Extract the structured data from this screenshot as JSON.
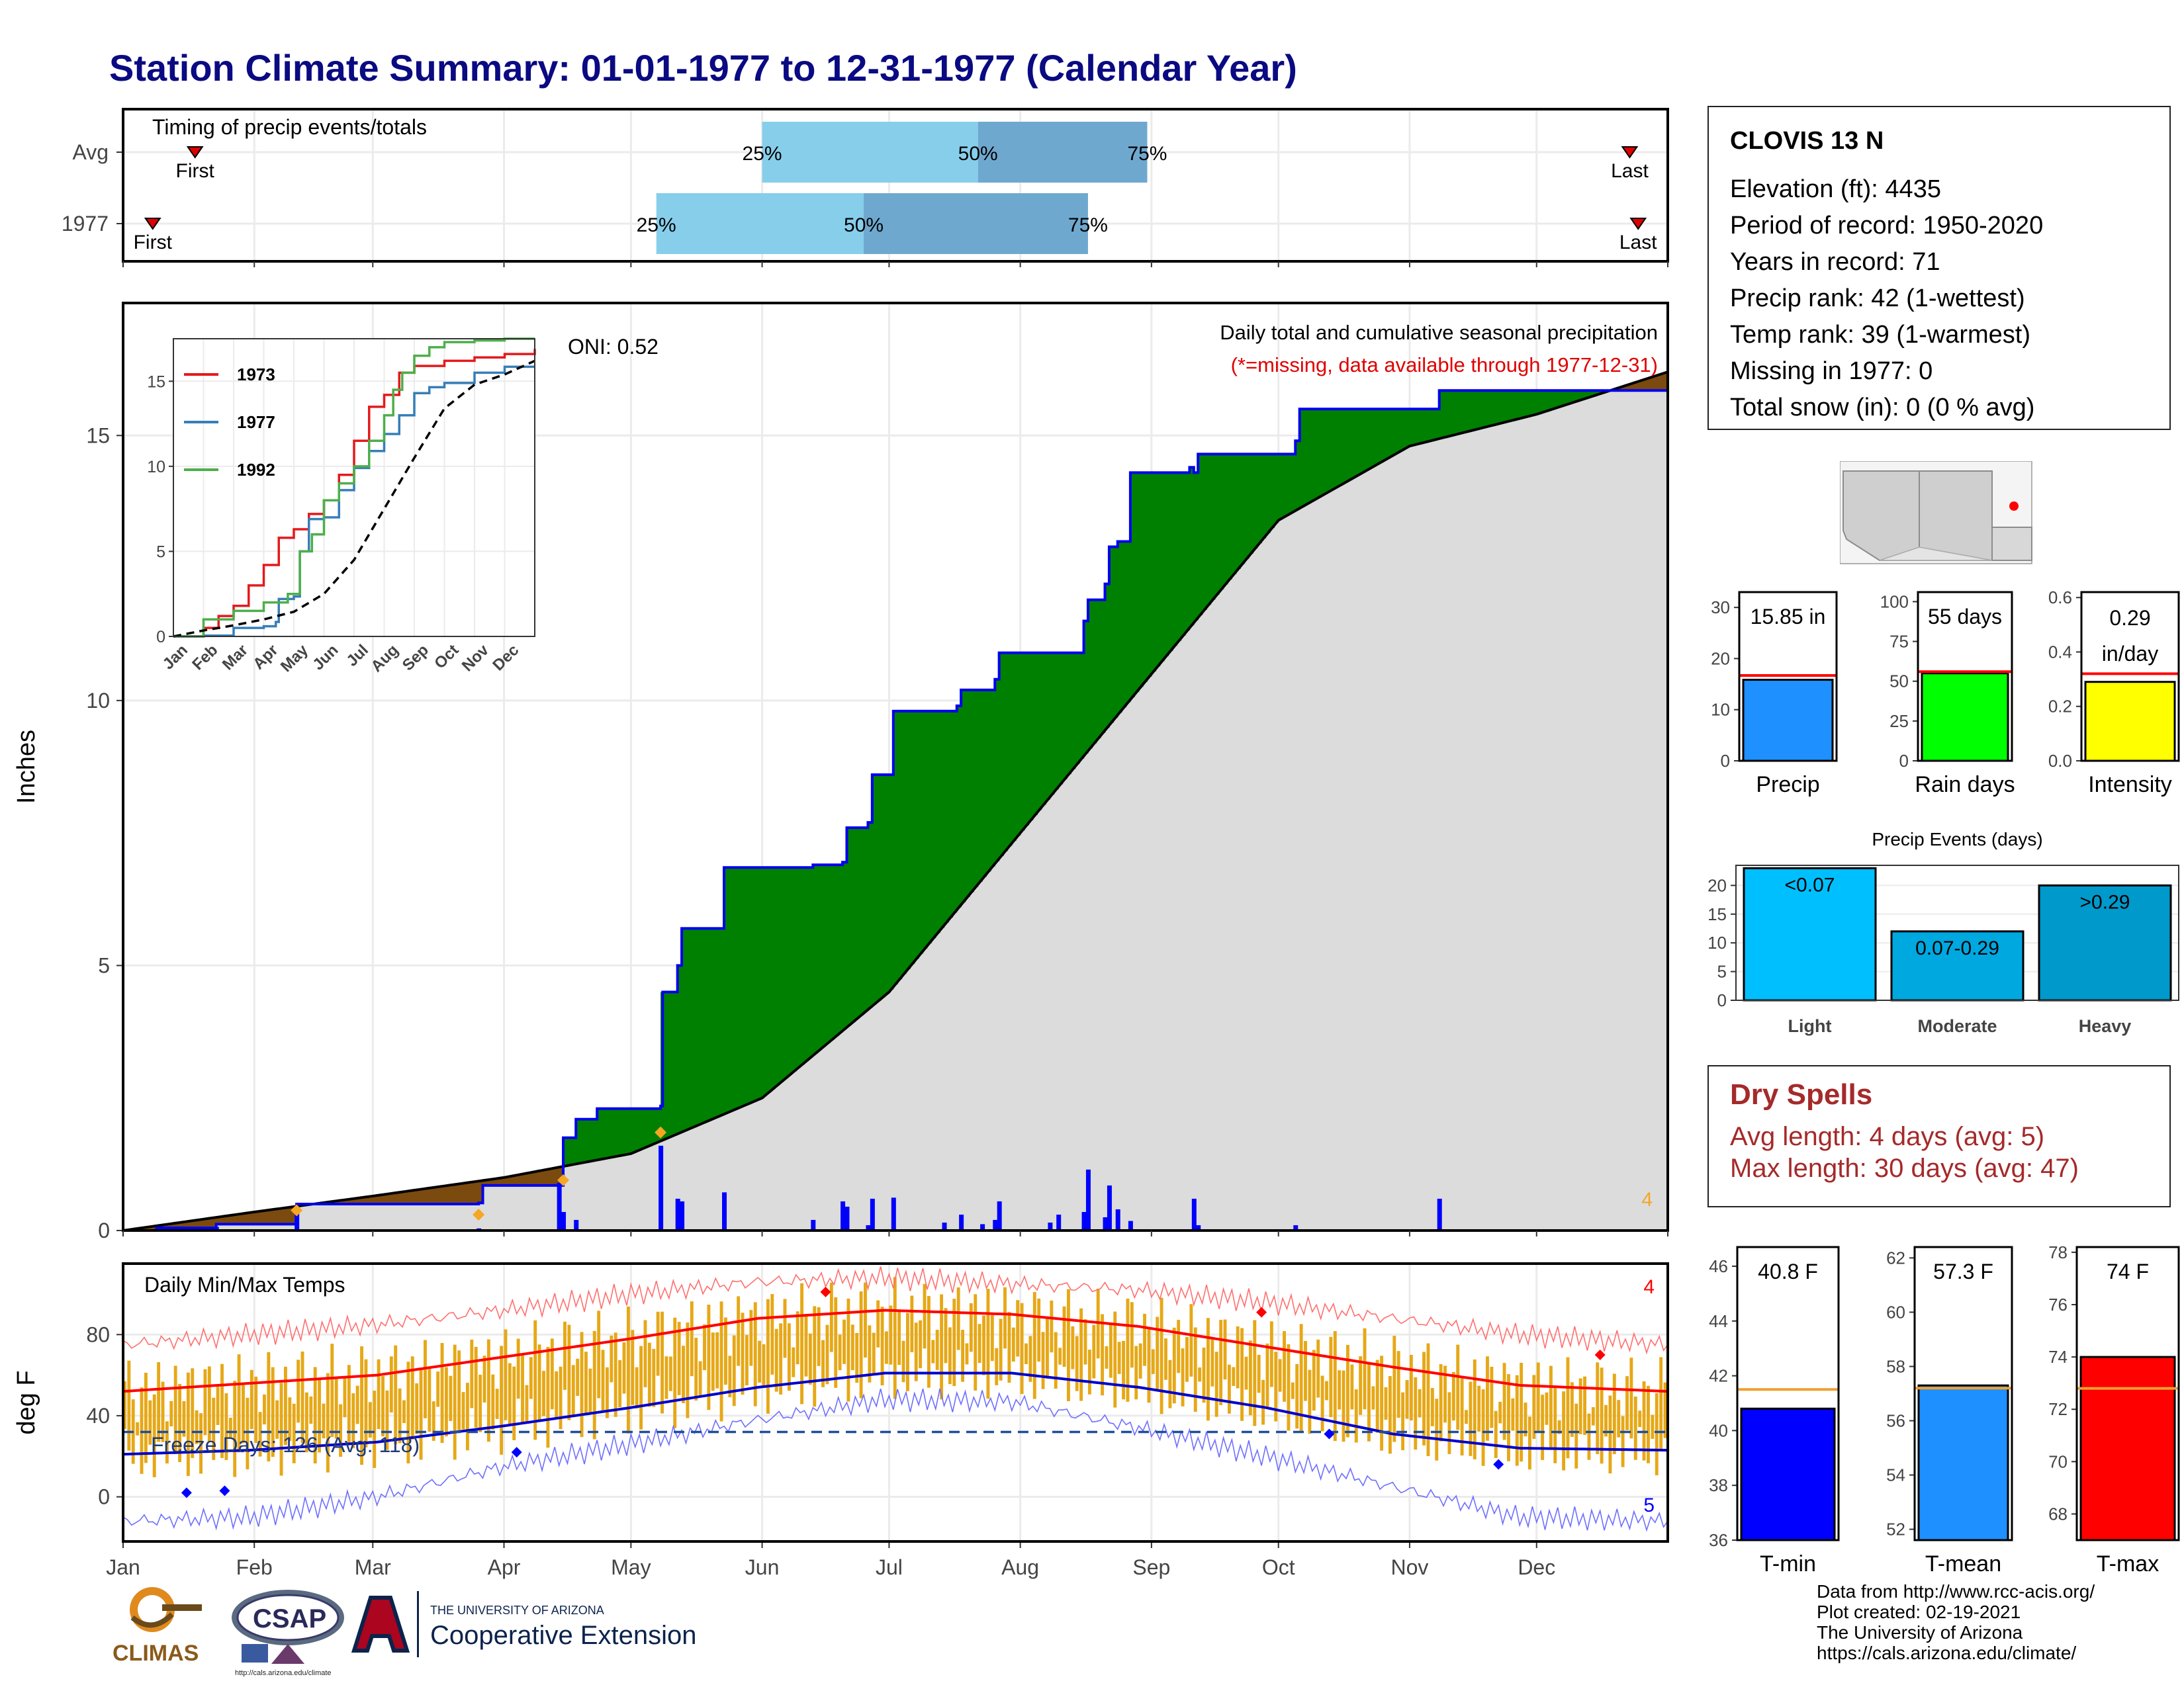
{
  "page": {
    "title": "Station Climate Summary: 01-01-1977 to 12-31-1977 (Calendar Year)"
  },
  "station": {
    "name": "CLOVIS 13 N",
    "lines": [
      "Elevation (ft): 4435",
      "Period of record: 1950-2020",
      "Years in record: 71",
      "Precip rank: 42 (1-wettest)",
      "Temp rank: 39 (1-warmest)",
      "Missing in 1977: 0",
      "Total snow (in): 0 (0 % avg)"
    ]
  },
  "dry_spells": {
    "title": "Dry Spells",
    "avg": "Avg length: 4 days (avg: 5)",
    "max": "Max length: 30 days (avg: 47)"
  },
  "credits": [
    "Data from http://www.rcc-acis.org/",
    "Plot created: 02-19-2021",
    "The University of Arizona",
    "https://cals.arizona.edu/climate/"
  ],
  "logos": {
    "climas": "CLIMAS",
    "csap": "CSAP",
    "csap_url": "http://cals.arizona.edu/climate",
    "ua_small": "THE UNIVERSITY OF ARIZONA",
    "ua_big": "Cooperative Extension"
  },
  "colors": {
    "title": "#0a0a82",
    "surplus": "#008000",
    "deficit": "#7b4a0f",
    "normal_fill": "#dcdcdc",
    "precip_bar": "#0000ff",
    "temp_bar": "#e6a817",
    "tmax_line": "#ff0000",
    "tmin_line": "#0000cc",
    "q1": "#87ceeb",
    "q2": "#6fa8cf"
  },
  "chart_data": [
    {
      "id": "timing",
      "type": "bar",
      "title": "Timing of precip events/totals",
      "rows": [
        {
          "label": "Avg",
          "first": "Jan 18",
          "q25": "Jun 1",
          "q50": "Jul 22",
          "q75": "Aug 31",
          "last": "Dec 23"
        },
        {
          "label": "1977",
          "first": "Jan 8",
          "q25": "May 7",
          "q50": "Jun 25",
          "q75": "Aug 17",
          "last": "Dec 25"
        }
      ],
      "marker_labels": {
        "first": "First",
        "last": "Last",
        "q25": "25%",
        "q50": "50%",
        "q75": "75%"
      }
    },
    {
      "id": "precip",
      "type": "area",
      "title": "Daily total and cumulative seasonal precipitation",
      "subtitle": "(*=missing, data available through 1977-12-31)",
      "oni": "ONI: 0.52",
      "ylabel": "Inches",
      "ylim": [
        0,
        17.5
      ],
      "yticks": [
        0,
        5,
        10,
        15
      ],
      "xlabels": [
        "Jan",
        "Feb",
        "Mar",
        "Apr",
        "May",
        "Jun",
        "Jul",
        "Aug",
        "Sep",
        "Oct",
        "Nov",
        "Dec"
      ],
      "corner_count": "4",
      "normal_cumulative": {
        "day": [
          0,
          31,
          59,
          90,
          120,
          151,
          181,
          212,
          243,
          273,
          304,
          334,
          365
        ],
        "value": [
          0,
          0.35,
          0.65,
          1.0,
          1.45,
          2.5,
          4.5,
          7.5,
          10.5,
          13.4,
          14.8,
          15.4,
          16.2
        ]
      },
      "cumulative_1977": {
        "day": [
          0,
          8,
          22,
          41,
          84,
          85,
          103,
          104,
          107,
          112,
          127,
          127.5,
          131,
          132,
          142,
          163,
          170,
          171,
          176,
          177,
          182,
          197,
          198,
          206,
          207,
          227,
          228,
          232,
          233,
          235,
          238,
          252,
          253,
          254,
          277,
          278,
          306,
          311,
          365
        ],
        "value": [
          0,
          0.05,
          0.12,
          0.5,
          0.52,
          0.85,
          0.85,
          1.75,
          2.1,
          2.3,
          2.35,
          4.5,
          5.0,
          5.7,
          6.85,
          6.9,
          6.95,
          7.6,
          7.7,
          8.6,
          9.8,
          9.9,
          10.2,
          10.4,
          10.9,
          11.5,
          11.9,
          12.2,
          12.9,
          13.0,
          14.3,
          14.4,
          14.3,
          14.65,
          14.9,
          15.5,
          15.5,
          15.85,
          15.85
        ]
      },
      "daily_bars": {
        "day": [
          8,
          22,
          41,
          84,
          103,
          104,
          107,
          127,
          131,
          132,
          142,
          163,
          170,
          171,
          176,
          177,
          182,
          194,
          198,
          203,
          206,
          207,
          219,
          221,
          227,
          228,
          232,
          233,
          235,
          238,
          253,
          254,
          277,
          311
        ],
        "value": [
          0.05,
          0.07,
          0.38,
          0.04,
          0.9,
          0.35,
          0.2,
          1.6,
          0.6,
          0.55,
          0.72,
          0.2,
          0.55,
          0.45,
          0.1,
          0.6,
          0.62,
          0.15,
          0.3,
          0.12,
          0.2,
          0.55,
          0.15,
          0.3,
          0.35,
          1.15,
          0.25,
          0.85,
          0.4,
          0.18,
          0.6,
          0.1,
          0.1,
          0.6
        ]
      },
      "markers": [
        {
          "day": 41,
          "value": 0.38
        },
        {
          "day": 84,
          "value": 0.3
        },
        {
          "day": 104,
          "value": 0.95
        },
        {
          "day": 127,
          "value": 1.85
        }
      ]
    },
    {
      "id": "inset",
      "type": "line",
      "xlabels": [
        "Jan",
        "Feb",
        "Mar",
        "Apr",
        "May",
        "Jun",
        "Jul",
        "Aug",
        "Sep",
        "Oct",
        "Nov",
        "Dec"
      ],
      "ylim": [
        0,
        17.5
      ],
      "yticks": [
        0,
        5,
        10,
        15
      ],
      "series": [
        {
          "name": "1973",
          "color": "#e41a1c",
          "month": [
            0,
            1,
            1.5,
            2,
            2.5,
            3,
            3.5,
            4,
            4.5,
            5,
            5.5,
            6,
            6.5,
            7,
            7.5,
            8,
            9,
            10,
            11,
            12
          ],
          "value": [
            0,
            0.5,
            1.2,
            1.8,
            3.0,
            4.2,
            5.8,
            6.3,
            7.2,
            8.0,
            9.5,
            11.5,
            13.5,
            14.2,
            15.5,
            15.9,
            16.2,
            16.4,
            16.6,
            16.9
          ]
        },
        {
          "name": "1977",
          "color": "#377eb8",
          "month": [
            0,
            1,
            2,
            3,
            3.4,
            3.5,
            4,
            4.2,
            4.5,
            5,
            5.5,
            6,
            6.5,
            7,
            7.5,
            8,
            8.5,
            9,
            10,
            11,
            12
          ],
          "value": [
            0,
            0.05,
            0.5,
            0.6,
            0.85,
            2.2,
            2.35,
            5.0,
            6.9,
            7.0,
            8.6,
            9.9,
            10.9,
            11.9,
            13.0,
            14.3,
            14.65,
            14.9,
            15.5,
            15.85,
            15.85
          ]
        },
        {
          "name": "1992",
          "color": "#4daf4a",
          "month": [
            0,
            1,
            2,
            3,
            3.8,
            4.2,
            4.6,
            5,
            5.5,
            6,
            6.5,
            7,
            7.3,
            7.6,
            8,
            8.5,
            9,
            10,
            11,
            12
          ],
          "value": [
            0,
            1.0,
            1.5,
            2.0,
            2.5,
            5.0,
            6.0,
            8.0,
            9.0,
            10.0,
            11.5,
            13.0,
            14.5,
            15.5,
            16.5,
            17.0,
            17.3,
            17.4,
            17.5,
            17.5
          ]
        },
        {
          "name": "",
          "color": "#000000",
          "dashed": true,
          "month": [
            0,
            1,
            2,
            3,
            4,
            5,
            6,
            7,
            8,
            9,
            10,
            11,
            12
          ],
          "value": [
            0,
            0.35,
            0.65,
            1.0,
            1.45,
            2.5,
            4.5,
            7.5,
            10.5,
            13.4,
            14.8,
            15.4,
            16.2
          ]
        }
      ]
    },
    {
      "id": "temps",
      "type": "bar",
      "title": "Daily Min/Max Temps",
      "ylabel": "deg F",
      "ylim": [
        -22,
        115
      ],
      "yticks": [
        0,
        40,
        80
      ],
      "freeze_label": "Freeze Days: 126 (Avg: 118)",
      "freeze_line": 32,
      "count_top": "4",
      "count_bottom": "5",
      "normal_max": {
        "day": [
          0,
          30,
          60,
          90,
          120,
          150,
          180,
          210,
          240,
          270,
          300,
          330,
          365
        ],
        "value": [
          52,
          56,
          60,
          69,
          78,
          88,
          92,
          90,
          84,
          74,
          64,
          55,
          52
        ]
      },
      "normal_min": {
        "day": [
          0,
          30,
          60,
          90,
          120,
          150,
          180,
          210,
          240,
          270,
          300,
          330,
          365
        ],
        "value": [
          21,
          23,
          27,
          35,
          44,
          54,
          61,
          61,
          54,
          44,
          31,
          24,
          23
        ]
      },
      "record_max": {
        "day": [
          0,
          30,
          60,
          90,
          120,
          150,
          180,
          210,
          240,
          270,
          300,
          330,
          365
        ],
        "value": [
          75,
          80,
          85,
          92,
          100,
          106,
          108,
          105,
          102,
          96,
          88,
          80,
          75
        ]
      },
      "record_min": {
        "day": [
          0,
          30,
          60,
          90,
          120,
          150,
          180,
          210,
          240,
          270,
          300,
          330,
          365
        ],
        "value": [
          -12,
          -10,
          0,
          15,
          26,
          38,
          48,
          47,
          34,
          20,
          5,
          -10,
          -12
        ]
      },
      "records": [
        {
          "day": 15,
          "value": 2,
          "kind": "low"
        },
        {
          "day": 24,
          "value": 3,
          "kind": "low"
        },
        {
          "day": 93,
          "value": 22,
          "kind": "low"
        },
        {
          "day": 285,
          "value": 31,
          "kind": "low"
        },
        {
          "day": 325,
          "value": 16,
          "kind": "low"
        },
        {
          "day": 166,
          "value": 101,
          "kind": "high"
        },
        {
          "day": 269,
          "value": 91,
          "kind": "high"
        },
        {
          "day": 349,
          "value": 70,
          "kind": "high"
        }
      ],
      "xlabels": [
        "Jan",
        "Feb",
        "Mar",
        "Apr",
        "May",
        "Jun",
        "Jul",
        "Aug",
        "Sep",
        "Oct",
        "Nov",
        "Dec"
      ]
    },
    {
      "id": "precip-total",
      "type": "bar",
      "label": "Precip",
      "value": 15.85,
      "normal": 16.7,
      "ylim": [
        0,
        33
      ],
      "yticks": [
        0,
        10,
        20,
        30
      ],
      "text": "15.85 in",
      "color": "#1e90ff"
    },
    {
      "id": "rain-days",
      "type": "bar",
      "label": "Rain days",
      "value": 55,
      "normal": 56,
      "ylim": [
        0,
        106
      ],
      "yticks": [
        0,
        25,
        50,
        75,
        100
      ],
      "text": "55 days",
      "color": "#00ff00"
    },
    {
      "id": "intensity",
      "type": "bar",
      "label": "Intensity",
      "value": 0.29,
      "normal": 0.32,
      "ylim": [
        0,
        0.62
      ],
      "yticks": [
        0.0,
        0.2,
        0.4,
        0.6
      ],
      "text_lines": [
        "0.29",
        "in/day"
      ],
      "color": "#ffff00"
    },
    {
      "id": "events",
      "type": "bar",
      "title": "Precip Events (days)",
      "categories": [
        "Light",
        "Moderate",
        "Heavy"
      ],
      "values": [
        23,
        12,
        20
      ],
      "bar_labels": [
        "<0.07",
        "0.07-0.29",
        ">0.29"
      ],
      "ylim": [
        0,
        23.5
      ],
      "yticks": [
        0,
        5,
        10,
        15,
        20
      ]
    },
    {
      "id": "tmin",
      "type": "bar",
      "label": "T-min",
      "value": 40.8,
      "normal": 41.5,
      "ylim": [
        36,
        46.7
      ],
      "yticks": [
        36,
        38,
        40,
        42,
        44,
        46
      ],
      "text": "40.8 F",
      "color": "#0000ff"
    },
    {
      "id": "tmean",
      "type": "bar",
      "label": "T-mean",
      "value": 57.3,
      "normal": 57.2,
      "ylim": [
        51.6,
        62.4
      ],
      "yticks": [
        52,
        54,
        56,
        58,
        60,
        62
      ],
      "text": "57.3 F",
      "color": "#1e90ff"
    },
    {
      "id": "tmax",
      "type": "bar",
      "label": "T-max",
      "value": 74,
      "normal": 72.8,
      "ylim": [
        67,
        78.2
      ],
      "yticks": [
        68,
        70,
        72,
        74,
        76,
        78
      ],
      "text": "74 F",
      "color": "#ff0000"
    }
  ]
}
